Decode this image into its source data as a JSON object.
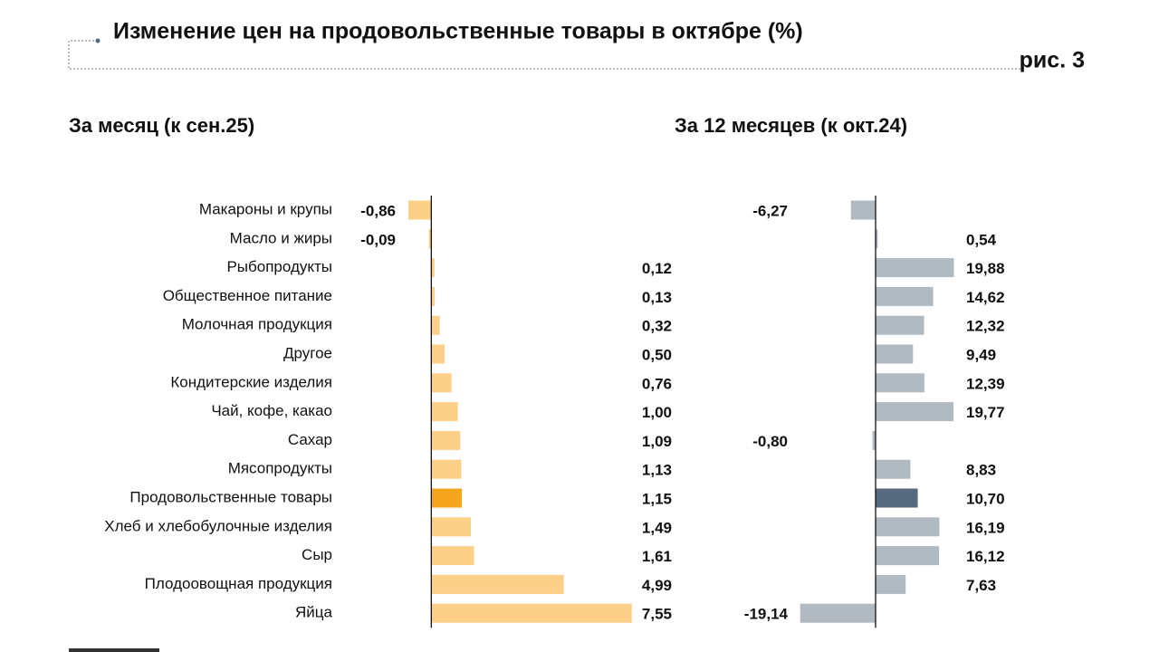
{
  "title": "Изменение цен на продовольственные товары в октябре (%)",
  "figure_label": "рис. 3",
  "chart_data": [
    {
      "type": "hbar",
      "title": "За месяц (к сен.25)",
      "categories": [
        "Макароны и крупы",
        "Масло и жиры",
        "Рыбопродукты",
        "Общественное питание",
        "Молочная продукция",
        "Другое",
        "Кондитерские изделия",
        "Чай, кофе, какао",
        "Сахар",
        "Мясопродукты",
        "Продовольственные товары",
        "Хлеб и хлебобулочные изделия",
        "Сыр",
        "Плодоовощная продукция",
        "Яйца"
      ],
      "values": [
        -0.86,
        -0.09,
        0.12,
        0.13,
        0.32,
        0.5,
        0.76,
        1.0,
        1.09,
        1.13,
        1.15,
        1.49,
        1.61,
        4.99,
        7.55
      ],
      "value_labels": [
        "-0,86",
        "-0,09",
        "0,12",
        "0,13",
        "0,32",
        "0,50",
        "0,76",
        "1,00",
        "1,09",
        "1,13",
        "1,15",
        "1,49",
        "1,61",
        "4,99",
        "7,55"
      ],
      "colors": [
        "#fdd08a",
        "#fdd08a",
        "#fdd08a",
        "#fdd08a",
        "#fdd08a",
        "#fdd08a",
        "#fdd08a",
        "#fdd08a",
        "#fdd08a",
        "#fdd08a",
        "#f5a41e",
        "#fdd08a",
        "#fdd08a",
        "#fdd08a",
        "#fdd08a"
      ],
      "xlim": [
        -1,
        8
      ]
    },
    {
      "type": "hbar",
      "title": "За 12 месяцев (к окт.24)",
      "values": [
        -6.27,
        0.54,
        19.88,
        14.62,
        12.32,
        9.49,
        12.39,
        19.77,
        -0.8,
        8.83,
        10.7,
        16.19,
        16.12,
        7.63,
        -19.14
      ],
      "value_labels": [
        "-6,27",
        "0,54",
        "19,88",
        "14,62",
        "12,32",
        "9,49",
        "12,39",
        "19,77",
        "-0,80",
        "8,83",
        "10,70",
        "16,19",
        "16,12",
        "7,63",
        "-19,14"
      ],
      "colors": [
        "#b1b9c1",
        "#b1b9c1",
        "#b1b9c1",
        "#b1b9c1",
        "#b1b9c1",
        "#b1b9c1",
        "#b1b9c1",
        "#b1b9c1",
        "#b1b9c1",
        "#b1b9c1",
        "#566a7e",
        "#b1b9c1",
        "#b1b9c1",
        "#b1b9c1",
        "#b1b9c1"
      ],
      "xlim": [
        -20,
        20
      ]
    }
  ]
}
